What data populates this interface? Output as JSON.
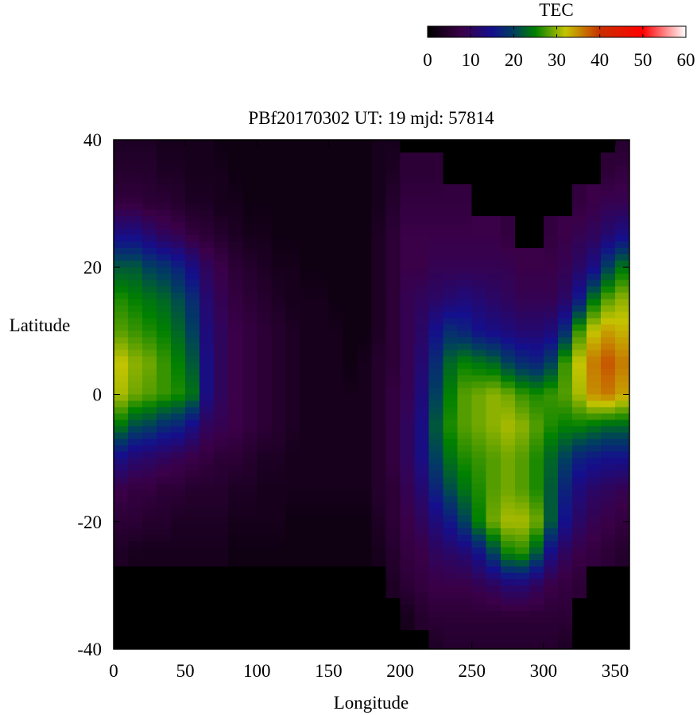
{
  "chart_data": {
    "type": "heatmap",
    "title": "PBf20170302  UT: 19  mjd: 57814",
    "xlabel": "Longitude",
    "ylabel": "Latitude",
    "xlim": [
      0,
      360
    ],
    "ylim": [
      -40,
      40
    ],
    "xticks": [
      "0",
      "50",
      "100",
      "150",
      "200",
      "250",
      "300",
      "350"
    ],
    "yticks": [
      "40",
      "20",
      "0",
      "-20",
      "-40"
    ],
    "colorbar": {
      "label": "TEC",
      "range": [
        0,
        60
      ],
      "ticks": [
        "0",
        "10",
        "20",
        "30",
        "40",
        "50",
        "60"
      ],
      "stops": [
        {
          "v": 0,
          "c": "#000000"
        },
        {
          "v": 8,
          "c": "#3a0048"
        },
        {
          "v": 15,
          "c": "#140f8c"
        },
        {
          "v": 20,
          "c": "#003f5f"
        },
        {
          "v": 25,
          "c": "#008000"
        },
        {
          "v": 32,
          "c": "#c4c400"
        },
        {
          "v": 40,
          "c": "#c83000"
        },
        {
          "v": 50,
          "c": "#ff0000"
        },
        {
          "v": 60,
          "c": "#ffffff"
        }
      ]
    },
    "grid": false,
    "lon_step": 10,
    "lat_values": [
      40,
      35,
      30,
      25,
      20,
      15,
      10,
      5,
      0,
      -5,
      -10,
      -15,
      -20,
      -25,
      -30,
      -35,
      -40
    ],
    "values": [
      [
        4,
        4,
        4,
        3,
        3,
        3,
        3,
        2,
        2,
        2,
        2,
        2,
        2,
        2,
        2,
        2,
        2,
        2,
        3,
        3,
        0,
        0,
        0,
        0,
        0,
        0,
        0,
        0,
        0,
        0,
        0,
        0,
        0,
        0,
        0,
        5
      ],
      [
        5,
        5,
        5,
        4,
        4,
        3,
        3,
        3,
        2,
        2,
        2,
        2,
        2,
        2,
        2,
        2,
        2,
        2,
        3,
        4,
        6,
        6,
        6,
        0,
        0,
        0,
        0,
        0,
        0,
        0,
        0,
        0,
        0,
        0,
        6,
        7
      ],
      [
        7,
        7,
        6,
        6,
        5,
        4,
        4,
        3,
        3,
        2,
        2,
        2,
        2,
        2,
        2,
        2,
        2,
        2,
        3,
        5,
        7,
        7,
        7,
        7,
        7,
        0,
        0,
        0,
        0,
        0,
        0,
        0,
        7,
        8,
        9,
        9
      ],
      [
        14,
        14,
        12,
        10,
        9,
        7,
        6,
        5,
        4,
        3,
        3,
        2,
        2,
        2,
        2,
        2,
        2,
        2,
        4,
        6,
        8,
        8,
        8,
        8,
        8,
        8,
        8,
        7,
        0,
        0,
        7,
        8,
        9,
        10,
        12,
        14
      ],
      [
        22,
        22,
        20,
        19,
        17,
        14,
        10,
        8,
        6,
        5,
        4,
        3,
        3,
        2,
        2,
        2,
        2,
        2,
        4,
        6,
        8,
        8,
        9,
        9,
        9,
        9,
        9,
        9,
        8,
        8,
        8,
        9,
        11,
        14,
        20,
        24
      ],
      [
        26,
        25,
        24,
        23,
        21,
        18,
        12,
        9,
        7,
        6,
        5,
        4,
        3,
        3,
        3,
        2,
        2,
        2,
        4,
        6,
        9,
        10,
        11,
        12,
        13,
        12,
        11,
        10,
        9,
        9,
        9,
        11,
        16,
        24,
        28,
        30
      ],
      [
        28,
        27,
        26,
        25,
        23,
        20,
        13,
        10,
        8,
        7,
        6,
        5,
        4,
        3,
        3,
        3,
        2,
        2,
        4,
        6,
        9,
        11,
        15,
        18,
        17,
        15,
        14,
        13,
        12,
        12,
        13,
        18,
        27,
        32,
        34,
        33
      ],
      [
        32,
        30,
        29,
        27,
        25,
        22,
        14,
        10,
        8,
        7,
        6,
        5,
        4,
        3,
        3,
        3,
        2,
        3,
        5,
        6,
        9,
        12,
        18,
        23,
        25,
        24,
        23,
        20,
        18,
        17,
        20,
        27,
        32,
        36,
        38,
        36
      ],
      [
        31,
        29,
        28,
        27,
        26,
        24,
        14,
        10,
        8,
        7,
        6,
        5,
        4,
        3,
        3,
        3,
        3,
        3,
        5,
        7,
        9,
        13,
        20,
        25,
        28,
        29,
        30,
        29,
        27,
        26,
        27,
        28,
        31,
        35,
        36,
        34
      ],
      [
        24,
        21,
        20,
        18,
        17,
        14,
        10,
        9,
        8,
        7,
        6,
        5,
        4,
        3,
        3,
        3,
        3,
        3,
        5,
        7,
        10,
        14,
        22,
        26,
        28,
        29,
        30,
        31,
        30,
        28,
        26,
        25,
        25,
        24,
        23,
        23
      ],
      [
        14,
        12,
        11,
        10,
        9,
        8,
        7,
        6,
        6,
        5,
        4,
        4,
        3,
        3,
        3,
        3,
        3,
        3,
        5,
        7,
        10,
        14,
        20,
        24,
        26,
        27,
        28,
        29,
        28,
        26,
        23,
        20,
        17,
        16,
        15,
        15
      ],
      [
        8,
        7,
        7,
        6,
        6,
        5,
        5,
        5,
        4,
        4,
        3,
        3,
        3,
        3,
        3,
        3,
        3,
        3,
        5,
        6,
        9,
        12,
        17,
        21,
        24,
        26,
        28,
        29,
        28,
        26,
        22,
        17,
        13,
        11,
        10,
        9
      ],
      [
        6,
        6,
        5,
        5,
        4,
        4,
        4,
        4,
        3,
        3,
        3,
        3,
        2,
        2,
        2,
        2,
        2,
        2,
        4,
        6,
        8,
        10,
        13,
        16,
        20,
        25,
        29,
        31,
        31,
        29,
        22,
        15,
        11,
        9,
        8,
        7
      ],
      [
        4,
        3,
        3,
        3,
        3,
        3,
        3,
        3,
        2,
        2,
        2,
        2,
        2,
        2,
        2,
        2,
        2,
        2,
        3,
        5,
        7,
        8,
        10,
        11,
        12,
        15,
        20,
        25,
        26,
        22,
        14,
        10,
        8,
        7,
        6,
        5
      ],
      [
        0,
        0,
        0,
        0,
        0,
        0,
        0,
        0,
        0,
        0,
        0,
        0,
        0,
        0,
        0,
        0,
        0,
        0,
        0,
        4,
        6,
        7,
        8,
        8,
        8,
        9,
        10,
        12,
        12,
        10,
        8,
        7,
        6,
        0,
        0,
        0
      ],
      [
        0,
        0,
        0,
        0,
        0,
        0,
        0,
        0,
        0,
        0,
        0,
        0,
        0,
        0,
        0,
        0,
        0,
        0,
        0,
        0,
        3,
        5,
        6,
        6,
        6,
        6,
        6,
        6,
        6,
        6,
        6,
        6,
        0,
        0,
        0,
        0
      ],
      [
        0,
        0,
        0,
        0,
        0,
        0,
        0,
        0,
        0,
        0,
        0,
        0,
        0,
        0,
        0,
        0,
        0,
        0,
        0,
        0,
        0,
        0,
        4,
        5,
        5,
        5,
        5,
        5,
        5,
        5,
        5,
        4,
        0,
        0,
        0,
        0
      ]
    ]
  }
}
